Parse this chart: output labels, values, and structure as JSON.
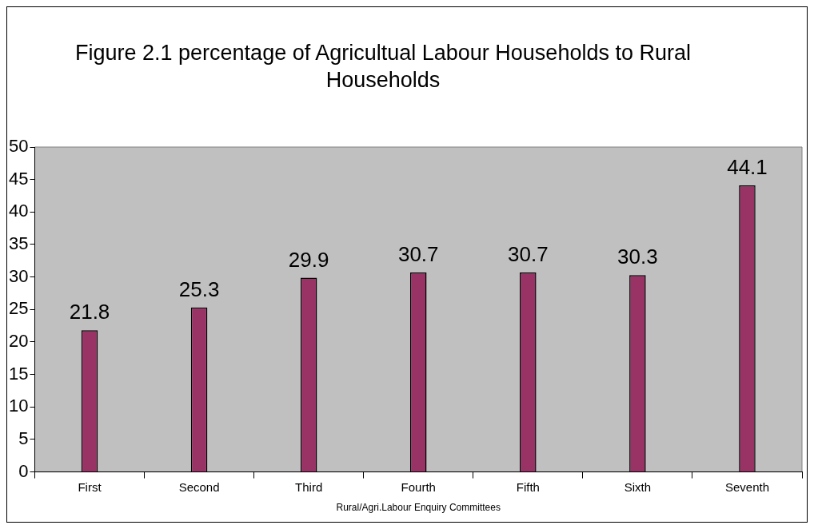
{
  "chart_data": {
    "type": "bar",
    "title": "Figure 2.1 percentage of Agricultual Labour Households to Rural Households",
    "xlabel": "Rural/Agri.Labour Enquiry Committees",
    "categories": [
      "First",
      "Second",
      "Third",
      "Fourth",
      "Fifth",
      "Sixth",
      "Seventh"
    ],
    "values": [
      21.8,
      25.3,
      29.9,
      30.7,
      30.7,
      30.3,
      44.1
    ],
    "color": "#993366",
    "ylim": [
      0,
      50
    ],
    "yticks": [
      0,
      5,
      10,
      15,
      20,
      25,
      30,
      35,
      40,
      45,
      50
    ],
    "grid": false,
    "legend": false,
    "data_labels": true
  }
}
